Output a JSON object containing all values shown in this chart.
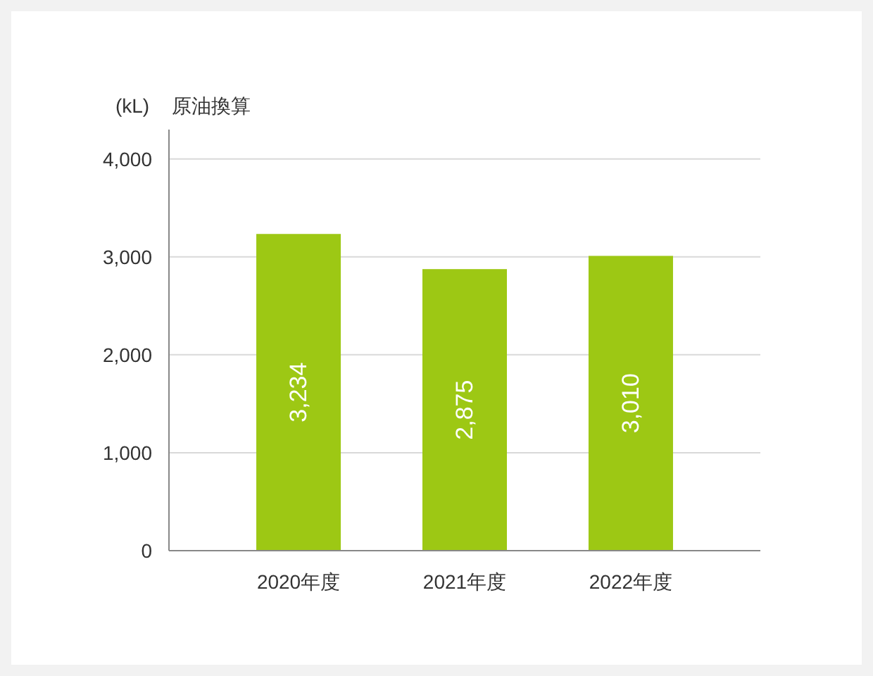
{
  "chart_data": {
    "type": "bar",
    "ylabel": "(kL)",
    "annotations": [
      "原油換算"
    ],
    "categories": [
      "2020年度",
      "2021年度",
      "2022年度"
    ],
    "values": [
      3234,
      2875,
      3010
    ],
    "color": "#9dc814",
    "value_labels": [
      "3,234",
      "2,875",
      "3,010"
    ],
    "ylim": [
      0,
      4300
    ],
    "yticks": [
      0,
      {
        "value": 1000,
        "label": "1,000"
      },
      {
        "value": 2000,
        "label": "2,000"
      },
      {
        "value": 3000,
        "label": "3,000"
      },
      {
        "value": 4000,
        "label": "4,000"
      }
    ],
    "grid": "y"
  }
}
